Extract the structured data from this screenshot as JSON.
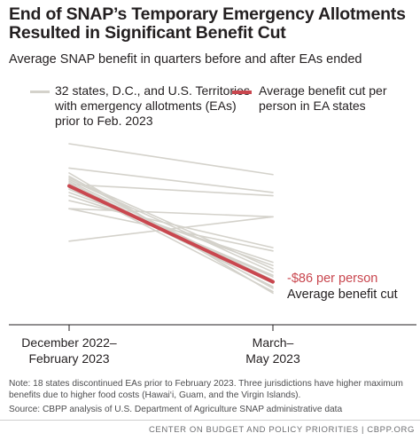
{
  "title_line1": "End of SNAP’s Temporary Emergency Allotments",
  "title_line2": "Resulted in Significant Benefit Cut",
  "subtitle": "Average SNAP benefit in quarters before and after EAs ended",
  "colors": {
    "states_line": "#d4d2cb",
    "average_line": "#c9474f",
    "text": "#231f20",
    "note": "#4d4d4f"
  },
  "legend": {
    "states": [
      "32 states, D.C., and U.S. Territories",
      "with emergency allotments (EAs)",
      "prior to Feb. 2023"
    ],
    "average": [
      "Average benefit cut per",
      "person in EA states"
    ]
  },
  "chart_data": {
    "type": "line",
    "x": [
      "December 2022–February 2023",
      "March–May 2023"
    ],
    "x_tick_lines": [
      [
        "December 2022–",
        "February 2023"
      ],
      [
        "March–",
        "May 2023"
      ]
    ],
    "states_series": [
      [
        100,
        81
      ],
      [
        85,
        70
      ],
      [
        75,
        68
      ],
      [
        60,
        55
      ],
      [
        40,
        55
      ],
      [
        60,
        34
      ],
      [
        65,
        36
      ],
      [
        68,
        27
      ],
      [
        70,
        25
      ],
      [
        72,
        19
      ],
      [
        73,
        18
      ],
      [
        74,
        9
      ],
      [
        75,
        12
      ],
      [
        76,
        14
      ],
      [
        77,
        16
      ],
      [
        78,
        21
      ],
      [
        79,
        23
      ],
      [
        80,
        11
      ],
      [
        82,
        8
      ]
    ],
    "average_series": {
      "name": "Average benefit cut per person in EA states",
      "values": [
        74,
        15
      ]
    },
    "annotation": {
      "value": "-$86 per person",
      "label": "Average benefit cut"
    }
  },
  "note": "Note: 18 states discontinued EAs prior to February 2023. Three jurisdictions have higher maximum benefits due to higher food costs (Hawai‘i, Guam, and the Virgin Islands).",
  "source": "Source: CBPP analysis of U.S. Department of Agriculture SNAP administrative data",
  "footer": "CENTER ON BUDGET AND POLICY PRIORITIES | CBPP.ORG"
}
